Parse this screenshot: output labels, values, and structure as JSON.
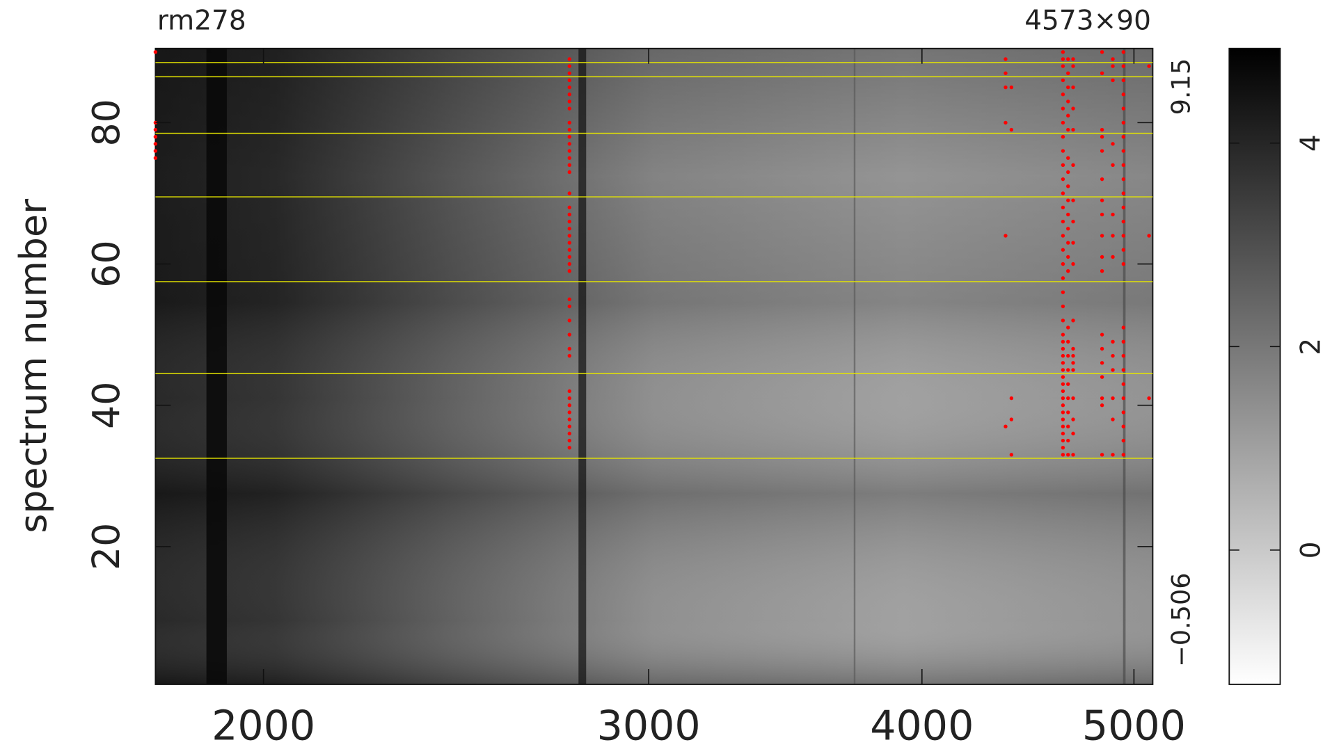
{
  "chart_data": {
    "type": "heatmap",
    "title": "rm278",
    "subtitle": "4573×90",
    "ylabel": "spectrum number",
    "xlim": [
      1785,
      5100
    ],
    "xlog": true,
    "xticks": [
      2000,
      3000,
      4000,
      5000
    ],
    "ylim": [
      0.5,
      90.5
    ],
    "yticks": [
      20,
      40,
      60,
      80
    ],
    "range_labels": [
      "9.15",
      "−0.506"
    ],
    "clim": [
      -1.32,
      4.93
    ],
    "cticks": [
      0,
      2,
      4
    ],
    "colormap": [
      "#ffffff",
      "#000000"
    ],
    "hlines": [
      88.5,
      86.5,
      78.5,
      69.5,
      57.5,
      44.5,
      32.5
    ],
    "hline_color": "#e6e600",
    "marker_color": "#ff0000",
    "markers": [
      {
        "x": 1785,
        "y": [
          75,
          76,
          77,
          78,
          79,
          80,
          90
        ]
      },
      {
        "x": 2760,
        "y": [
          34,
          35,
          36,
          37,
          38,
          39,
          40,
          41,
          42,
          47,
          48,
          50,
          52,
          54,
          55,
          59,
          60,
          61,
          62,
          63,
          64,
          65,
          66,
          67,
          68,
          70,
          73,
          74,
          75,
          76,
          77,
          78,
          79,
          80,
          82,
          83,
          84,
          85,
          86,
          87,
          88,
          89
        ]
      },
      {
        "x": 4368,
        "y": [
          37,
          64,
          80,
          85,
          87,
          89
        ]
      },
      {
        "x": 4395,
        "y": [
          33,
          38,
          41,
          79,
          85
        ]
      },
      {
        "x": 4640,
        "y": [
          33,
          34,
          35,
          36,
          37,
          38,
          39,
          40,
          41,
          42,
          43,
          44,
          45,
          46,
          47,
          48,
          49,
          50,
          52,
          54,
          56,
          58,
          60,
          62,
          64,
          66,
          68,
          70,
          72,
          74,
          76,
          78,
          80,
          82,
          84,
          86,
          88,
          89,
          90
        ]
      },
      {
        "x": 4665,
        "y": [
          33,
          35,
          37,
          39,
          41,
          43,
          45,
          47,
          49,
          51,
          59,
          61,
          63,
          65,
          67,
          69,
          71,
          73,
          75,
          79,
          81,
          83,
          85,
          87,
          89
        ]
      },
      {
        "x": 4690,
        "y": [
          33,
          36,
          38,
          41,
          45,
          46,
          47,
          48,
          52,
          60,
          63,
          66,
          69,
          74,
          79,
          82,
          85,
          88,
          89
        ]
      },
      {
        "x": 4835,
        "y": [
          33,
          40,
          41,
          44,
          46,
          48,
          50,
          59,
          61,
          64,
          67,
          69,
          72,
          76,
          78,
          79,
          87,
          90
        ]
      },
      {
        "x": 4890,
        "y": [
          33,
          38,
          41,
          45,
          47,
          49,
          61,
          64,
          67,
          74,
          77,
          86,
          88,
          89
        ]
      },
      {
        "x": 4945,
        "y": [
          33,
          35,
          37,
          39,
          41,
          43,
          45,
          47,
          49,
          51,
          60,
          62,
          64,
          66,
          68,
          70,
          72,
          74,
          76,
          78,
          80,
          82,
          84,
          86,
          88,
          90
        ]
      },
      {
        "x": 5080,
        "y": [
          41,
          64,
          88
        ]
      }
    ]
  }
}
